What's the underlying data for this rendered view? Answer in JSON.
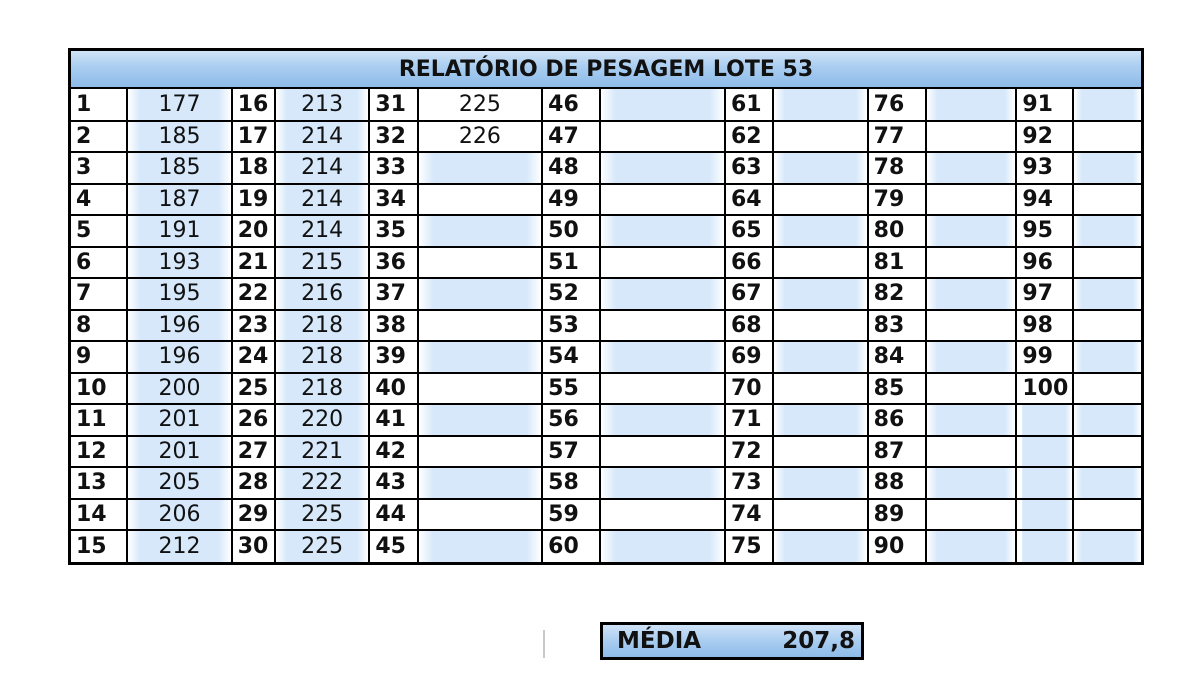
{
  "report": {
    "title": "RELATÓRIO DE PESAGEM LOTE 53",
    "average_label": "MÉDIA",
    "average_value": "207,8"
  },
  "columns": [
    {
      "nums": [
        "1",
        "2",
        "3",
        "4",
        "5",
        "6",
        "7",
        "8",
        "9",
        "10",
        "11",
        "12",
        "13",
        "14",
        "15"
      ],
      "vals": [
        "177",
        "185",
        "185",
        "187",
        "191",
        "193",
        "195",
        "196",
        "196",
        "200",
        "201",
        "201",
        "205",
        "206",
        "212"
      ]
    },
    {
      "nums": [
        "16",
        "17",
        "18",
        "19",
        "20",
        "21",
        "22",
        "23",
        "24",
        "25",
        "26",
        "27",
        "28",
        "29",
        "30"
      ],
      "vals": [
        "213",
        "214",
        "214",
        "214",
        "214",
        "215",
        "216",
        "218",
        "218",
        "218",
        "220",
        "221",
        "222",
        "225",
        "225"
      ]
    },
    {
      "nums": [
        "31",
        "32",
        "33",
        "34",
        "35",
        "36",
        "37",
        "38",
        "39",
        "40",
        "41",
        "42",
        "43",
        "44",
        "45"
      ],
      "vals": [
        "225",
        "226",
        "",
        "",
        "",
        "",
        "",
        "",
        "",
        "",
        "",
        "",
        "",
        "",
        ""
      ]
    },
    {
      "nums": [
        "46",
        "47",
        "48",
        "49",
        "50",
        "51",
        "52",
        "53",
        "54",
        "55",
        "56",
        "57",
        "58",
        "59",
        "60"
      ],
      "vals": [
        "",
        "",
        "",
        "",
        "",
        "",
        "",
        "",
        "",
        "",
        "",
        "",
        "",
        "",
        ""
      ]
    },
    {
      "nums": [
        "61",
        "62",
        "63",
        "64",
        "65",
        "66",
        "67",
        "68",
        "69",
        "70",
        "71",
        "72",
        "73",
        "74",
        "75"
      ],
      "vals": [
        "",
        "",
        "",
        "",
        "",
        "",
        "",
        "",
        "",
        "",
        "",
        "",
        "",
        "",
        ""
      ]
    },
    {
      "nums": [
        "76",
        "77",
        "78",
        "79",
        "80",
        "81",
        "82",
        "83",
        "84",
        "85",
        "86",
        "87",
        "88",
        "89",
        "90"
      ],
      "vals": [
        "",
        "",
        "",
        "",
        "",
        "",
        "",
        "",
        "",
        "",
        "",
        "",
        "",
        "",
        ""
      ]
    },
    {
      "nums": [
        "91",
        "92",
        "93",
        "94",
        "95",
        "96",
        "97",
        "98",
        "99",
        "100",
        "",
        "",
        "",
        "",
        ""
      ],
      "vals": [
        "",
        "",
        "",
        "",
        "",
        "",
        "",
        "",
        "",
        "",
        "",
        "",
        "",
        "",
        ""
      ]
    }
  ],
  "colors": {
    "header_gradient_top": "#cfe3f7",
    "header_gradient_bottom": "#8dbbe9",
    "row_highlight": "#d6e8fa",
    "border": "#000000"
  }
}
